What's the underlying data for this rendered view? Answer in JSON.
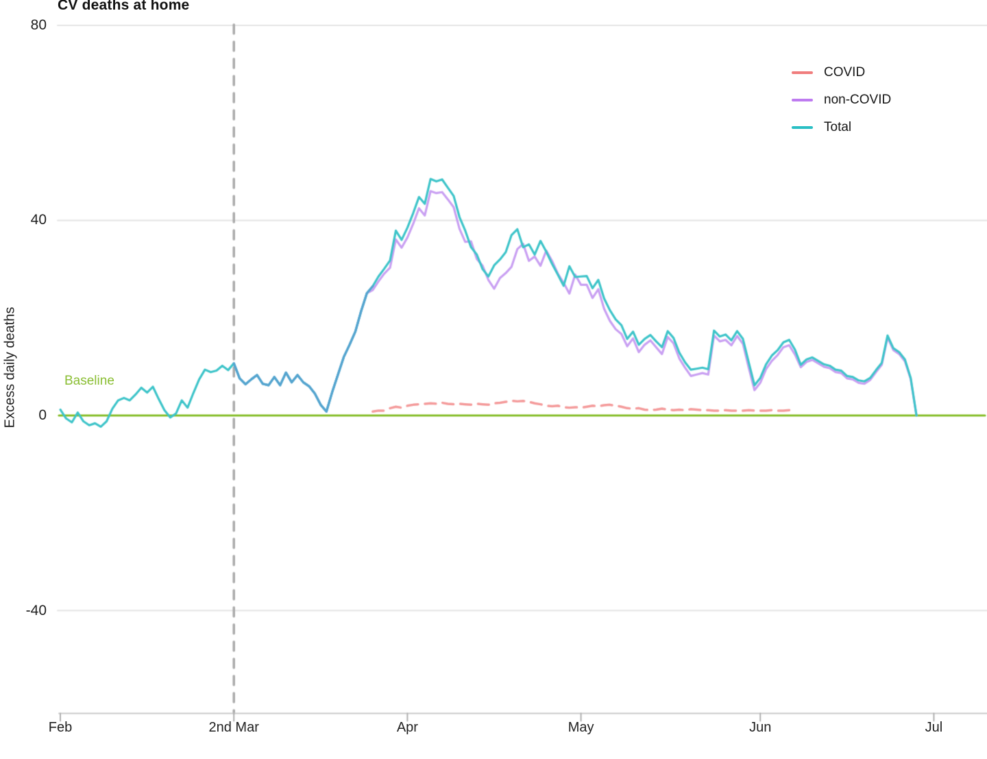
{
  "title": "CV deaths at home",
  "y_axis": {
    "label": "Excess daily deaths",
    "ticks": [
      {
        "label": "80",
        "value": 80
      },
      {
        "label": "40",
        "value": 40
      },
      {
        "label": "0",
        "value": 0
      },
      {
        "label": "-40",
        "value": -40
      }
    ]
  },
  "x_axis": {
    "ticks": [
      {
        "label": "Feb",
        "day": 0
      },
      {
        "label": "2nd Mar",
        "day": 30
      },
      {
        "label": "Apr",
        "day": 60
      },
      {
        "label": "May",
        "day": 90
      },
      {
        "label": "Jun",
        "day": 121
      },
      {
        "label": "Jul",
        "day": 151
      }
    ]
  },
  "annotations": {
    "baseline_label": "Baseline",
    "baseline_value": 0,
    "lockdown_vline_day": 30
  },
  "legend": [
    {
      "label": "COVID",
      "color": "#F07D7D"
    },
    {
      "label": "non-COVID",
      "color": "#BE7BF0"
    },
    {
      "label": "Total",
      "color": "#29BFC4"
    }
  ],
  "colors": {
    "covid_line": "#F49B9B",
    "noncovid_line": "#C9A0F2",
    "total_line": "#3EC4C9",
    "total_noncovid_overlap_blend": "#55A4CF",
    "baseline_green": "#87BE2B",
    "baseline_text": "#8ABE33",
    "vline_gray": "#ABABAB",
    "gridline": "#E4E4E4",
    "axis_line": "#C9C9C9",
    "tick_mark": "#B0B0B0",
    "text": "#1F1F1F"
  },
  "chart_data": {
    "type": "line",
    "title": "CV deaths at home",
    "xlabel": "",
    "ylabel": "Excess daily deaths",
    "x_unit": "days since 1 Feb 2020",
    "xlim_days": [
      0,
      160
    ],
    "ylim": [
      -61,
      80
    ],
    "grid": "horizontal-only",
    "legend_position": "top-right-inside",
    "baseline": {
      "value": 0,
      "label": "Baseline"
    },
    "vline": {
      "day": 30,
      "label": "2nd Mar",
      "style": "dashed"
    },
    "series": [
      {
        "name": "Total",
        "start_day": 0,
        "values": [
          1.2,
          -0.6,
          -1.4,
          0.6,
          -1.2,
          -2,
          -1.6,
          -2.3,
          -1.2,
          1.4,
          3.1,
          3.6,
          3.1,
          4.3,
          5.7,
          4.7,
          5.9,
          3.4,
          1.1,
          -0.4,
          0.4,
          3.1,
          1.6,
          4.6,
          7.4,
          9.4,
          8.9,
          9.2,
          10.2,
          9.3,
          10.7,
          7.6,
          6.4,
          7.4,
          8.3,
          6.5,
          6.2,
          7.9,
          6.2,
          8.8,
          6.8,
          8.3,
          6.8,
          6.0,
          4.5,
          2.2,
          0.8,
          4.8,
          8.4,
          12.0,
          14.5,
          17.2,
          21.4,
          25.1,
          26.5,
          28.5,
          30.1,
          31.8,
          37.9,
          36.0,
          38.5,
          41.5,
          44.8,
          43.4,
          48.5,
          48.0,
          48.4,
          46.7,
          45.0,
          40.7,
          37.9,
          34.5,
          33.0,
          30.0,
          28.5,
          30.8,
          32.0,
          33.5,
          37.0,
          38.2,
          34.5,
          35.1,
          33.0,
          35.8,
          33.6,
          31.1,
          28.9,
          26.6,
          30.6,
          28.4,
          28.5,
          28.6,
          26.1,
          27.8,
          24.0,
          21.6,
          19.7,
          18.5,
          15.7,
          17.2,
          14.5,
          15.7,
          16.5,
          15.2,
          14.0,
          17.3,
          15.9,
          12.9,
          10.9,
          9.4,
          9.6,
          9.8,
          9.5,
          17.4,
          16.2,
          16.6,
          15.4,
          17.3,
          15.7,
          10.9,
          6.2,
          7.7,
          10.5,
          12.3,
          13.4,
          15.0,
          15.5,
          13.5,
          10.4,
          11.5,
          11.9,
          11.2,
          10.5,
          10.2,
          9.4,
          9.2,
          8.1,
          7.9,
          7.2,
          7.0,
          7.7,
          9.3,
          10.8,
          16.4,
          13.8,
          13.0,
          11.5,
          7.7,
          0.0
        ]
      },
      {
        "name": "non-COVID",
        "start_day": 30,
        "values": [
          10.7,
          7.6,
          6.4,
          7.4,
          8.3,
          6.5,
          6.2,
          7.9,
          6.2,
          8.8,
          6.8,
          8.3,
          6.8,
          6.0,
          4.5,
          2.2,
          0.8,
          4.8,
          8.4,
          12.0,
          14.5,
          17.2,
          21.4,
          25.1,
          25.7,
          27.5,
          29.1,
          30.3,
          36.1,
          34.4,
          36.5,
          39.3,
          42.5,
          41.0,
          46.0,
          45.6,
          45.8,
          44.3,
          42.7,
          38.3,
          35.6,
          35.7,
          32.1,
          30.7,
          27.8,
          26.0,
          28.2,
          29.2,
          30.5,
          34.1,
          35.2,
          31.7,
          32.6,
          30.7,
          33.8,
          31.7,
          29.1,
          27.2,
          25.0,
          28.9,
          26.8,
          26.8,
          24.1,
          25.9,
          21.9,
          19.4,
          17.7,
          16.7,
          14.2,
          15.8,
          13.0,
          14.5,
          15.4,
          14.0,
          12.6,
          16.1,
          14.8,
          11.7,
          9.8,
          8.1,
          8.4,
          8.7,
          8.4,
          16.4,
          15.2,
          15.5,
          14.4,
          16.3,
          14.7,
          9.8,
          5.2,
          6.7,
          9.5,
          11.2,
          12.4,
          14.0,
          14.4,
          12.5,
          9.9,
          11.0,
          11.4,
          10.7,
          10.0,
          9.7,
          8.9,
          8.7,
          7.6,
          7.4,
          6.7,
          6.5,
          7.3,
          8.9,
          10.4,
          16.0,
          13.4,
          12.6,
          11.1,
          7.5,
          0.0
        ]
      },
      {
        "name": "COVID",
        "start_day": 54,
        "dashed": true,
        "values": [
          0.8,
          1.0,
          1.0,
          1.5,
          1.8,
          1.6,
          2.0,
          2.2,
          2.3,
          2.4,
          2.5,
          2.4,
          2.6,
          2.4,
          2.3,
          2.4,
          2.3,
          2.2,
          2.4,
          2.3,
          2.2,
          2.5,
          2.6,
          2.8,
          3.0,
          2.9,
          3.0,
          2.8,
          2.5,
          2.3,
          2.0,
          1.9,
          2.0,
          1.7,
          1.6,
          1.7,
          1.6,
          1.8,
          2.0,
          1.9,
          2.1,
          2.2,
          2.0,
          1.8,
          1.5,
          1.4,
          1.5,
          1.2,
          1.1,
          1.2,
          1.4,
          1.2,
          1.1,
          1.2,
          1.1,
          1.3,
          1.2,
          1.1,
          1.1,
          1.0,
          1.0,
          1.1,
          1.0,
          1.0,
          1.0,
          1.1,
          1.0,
          1.0,
          1.0,
          1.1,
          1.0,
          1.0,
          1.1,
          1.0
        ]
      }
    ]
  }
}
